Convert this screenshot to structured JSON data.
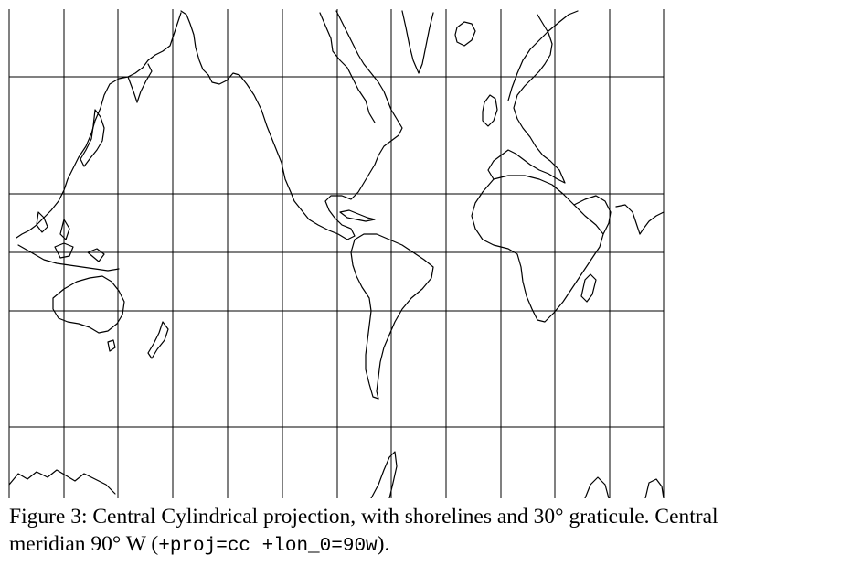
{
  "map": {
    "projection": "Central Cylindrical",
    "graticule_degrees": 30,
    "central_meridian": "90° W"
  },
  "caption": {
    "line1": "Figure 3: Central Cylindrical projection, with shorelines and 30° graticule. Central",
    "line2_prefix": "meridian 90° W (",
    "line2_code": "+proj=cc +lon_0=90w",
    "line2_suffix": ")."
  }
}
